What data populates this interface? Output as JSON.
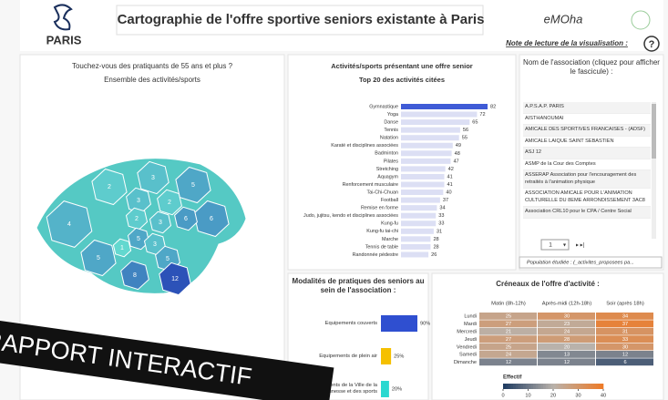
{
  "header": {
    "logo": "PARIS",
    "title": "Cartographie de l'offre sportive seniors existante à Paris",
    "partner": "eMOha",
    "note": "Note de lecture de la visualisation :",
    "help": "?"
  },
  "map_panel": {
    "title": "Touchez-vous des pratiquants de 55 ans et plus ?",
    "subtitle": "Ensemble des activités/sports",
    "values": [
      2,
      3,
      5,
      3,
      2,
      6,
      4,
      2,
      3,
      6,
      5,
      1,
      3,
      5,
      5,
      8,
      12
    ],
    "low_color": "#63d8cf",
    "high_color": "#2c52b8"
  },
  "activities": {
    "title": "Activités/sports présentant une offre senior",
    "subtitle": "Top 20 des activités citées",
    "categories": [
      "Gymnastique",
      "Yoga",
      "Danse",
      "Tennis",
      "Natation",
      "Karaté et disciplines associées",
      "Badminton",
      "Pilates",
      "Stretching",
      "Aquagym",
      "Renforcement musculaire",
      "Tai-Chi-Chuan",
      "Football",
      "Remise en forme",
      "Judo, jujitsu, kendo et disciplines associées",
      "Kung-fu",
      "Kung-fu tai-chi",
      "Marche",
      "Tennis de table",
      "Randonnée pédestre"
    ],
    "values": [
      82,
      72,
      65,
      56,
      55,
      49,
      48,
      47,
      42,
      41,
      41,
      40,
      37,
      34,
      33,
      33,
      31,
      28,
      28,
      26
    ],
    "color": "#dcdff4",
    "highlight_color": "#3f5bd6",
    "highlighted": "Gymnastique"
  },
  "associations": {
    "title": "Nom de l'association (cliquez pour afficher le fascicule) :",
    "items": [
      "A.P.S.A.P. PARIS",
      "AISTHANOUMAI",
      "AMICALE DES SPORTIVES FRANCAISES - (ADSF)",
      "AMICALE LAIQUE SAINT SEBASTIEN",
      "ASJ 12",
      "ASMP de la Cour des Comptes",
      "ASSERAP Association pour l'encouragement des retraités à l'animation physique",
      "ASSOCIATION AMICALE POUR L'ANIMATION CULTURELLE DU 8EME ARRONDISSEMENT 3AC8",
      "Association CRL10 pour le CPA / Centre Social"
    ],
    "page": "1",
    "tooltip": "Population étudiée : (_activites_proposees pa..."
  },
  "modalities": {
    "title": "Modalités de pratiques des seniors au sein de l'association :",
    "categories": [
      "Equipements couverts",
      "Equipements de plein air",
      "Equipements de la Ville de la jeunesse et des sports"
    ],
    "values": [
      90,
      25,
      20
    ],
    "value_labels": [
      "90%",
      "25%",
      "20%"
    ],
    "colors": [
      "#2f4fd0",
      "#f5c000",
      "#2ad8d0"
    ]
  },
  "schedule": {
    "title": "Créneaux de l'offre d'activité :",
    "columns": [
      "Matin (8h-12h)",
      "Après-midi (12h-18h)",
      "Soir (après 18h)"
    ],
    "rows": [
      "Lundi",
      "Mardi",
      "Mercredi",
      "Jeudi",
      "Vendredi",
      "Samedi",
      "Dimanche"
    ],
    "values": [
      [
        25,
        30,
        34
      ],
      [
        27,
        23,
        37
      ],
      [
        21,
        24,
        31
      ],
      [
        27,
        28,
        33
      ],
      [
        25,
        20,
        30
      ],
      [
        24,
        13,
        12
      ],
      [
        12,
        12,
        6
      ]
    ],
    "legend": {
      "title": "Effectif",
      "ticks": [
        0,
        10,
        20,
        30,
        40
      ]
    },
    "low_color": "#1d3a60",
    "mid_color": "#b9b2ab",
    "high_color": "#ee7a26"
  },
  "banner": "RAPPORT INTERACTIF"
}
